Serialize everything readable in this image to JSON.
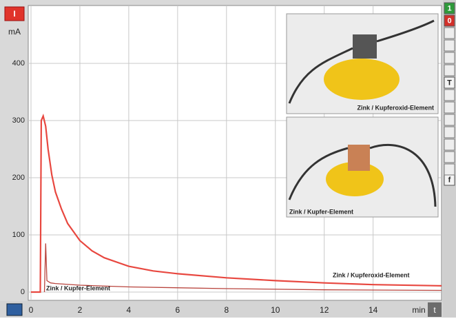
{
  "chart_data": {
    "type": "line",
    "y_quantity": "I",
    "y_unit": "mA",
    "x_unit": "min",
    "x_quantity": "t",
    "xlim": [
      0,
      16.8
    ],
    "xticks": [
      0,
      2,
      4,
      6,
      8,
      10,
      12,
      14
    ],
    "ylim": [
      0,
      500
    ],
    "yticks": [
      0,
      100,
      200,
      300,
      400
    ],
    "grid": true,
    "series": [
      {
        "name": "Zink / Kupferoxid-Element",
        "color": "#e8473f",
        "x": [
          0,
          0.38,
          0.42,
          0.5,
          0.6,
          0.7,
          0.85,
          1,
          1.25,
          1.5,
          2,
          2.5,
          3,
          4,
          5,
          6,
          8,
          10,
          12,
          14,
          16.8
        ],
        "values": [
          0,
          0,
          300,
          308,
          290,
          250,
          205,
          175,
          145,
          120,
          90,
          72,
          60,
          45,
          37,
          32,
          25,
          20,
          16,
          13,
          11
        ]
      },
      {
        "name": "Zink / Kupfer-Element",
        "color": "#b8433c",
        "x": [
          0.55,
          0.6,
          0.65,
          0.8,
          1,
          2,
          4,
          8,
          12,
          16.8
        ],
        "values": [
          0,
          85,
          20,
          16,
          15,
          12,
          9,
          6,
          4,
          3
        ]
      }
    ],
    "toolbar": [
      "1",
      "0",
      "T",
      "f"
    ]
  }
}
